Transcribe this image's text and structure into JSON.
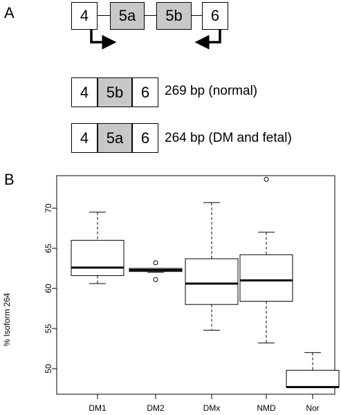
{
  "panel_a": {
    "label": "A",
    "gene_structure": [
      "4",
      "5a",
      "5b",
      "6"
    ],
    "isoforms": [
      {
        "exons": [
          "4",
          "5b",
          "6"
        ],
        "label": "269 bp (normal)"
      },
      {
        "exons": [
          "4",
          "5a",
          "6"
        ],
        "label": "264 bp (DM and fetal)"
      }
    ]
  },
  "panel_b": {
    "label": "B"
  },
  "chart_data": {
    "type": "box",
    "title": "",
    "xlabel": "",
    "ylabel": "% Isoform 264",
    "ylim": [
      47,
      75
    ],
    "yticks": [
      50,
      55,
      60,
      65,
      70
    ],
    "categories": [
      "DM1",
      "DM2",
      "DMx",
      "NMD",
      "Nor"
    ],
    "boxes": [
      {
        "name": "DM1",
        "whisker_low": 60.6,
        "q1": 61.6,
        "median": 62.6,
        "q3": 66.0,
        "whisker_high": 69.5,
        "outliers": []
      },
      {
        "name": "DM2",
        "whisker_low": 62.0,
        "q1": 62.1,
        "median": 62.3,
        "q3": 62.5,
        "whisker_high": 62.5,
        "outliers": [
          61.1,
          63.2
        ]
      },
      {
        "name": "DMx",
        "whisker_low": 54.8,
        "q1": 58.0,
        "median": 60.6,
        "q3": 63.7,
        "whisker_high": 70.7,
        "outliers": []
      },
      {
        "name": "NMD",
        "whisker_low": 53.2,
        "q1": 58.4,
        "median": 61.0,
        "q3": 64.2,
        "whisker_high": 67.0,
        "outliers": [
          73.6
        ]
      },
      {
        "name": "Nor",
        "whisker_low": 47.7,
        "q1": 47.7,
        "median": 47.7,
        "q3": 49.8,
        "whisker_high": 52.0,
        "outliers": []
      }
    ],
    "grid": false,
    "legend": "none"
  }
}
